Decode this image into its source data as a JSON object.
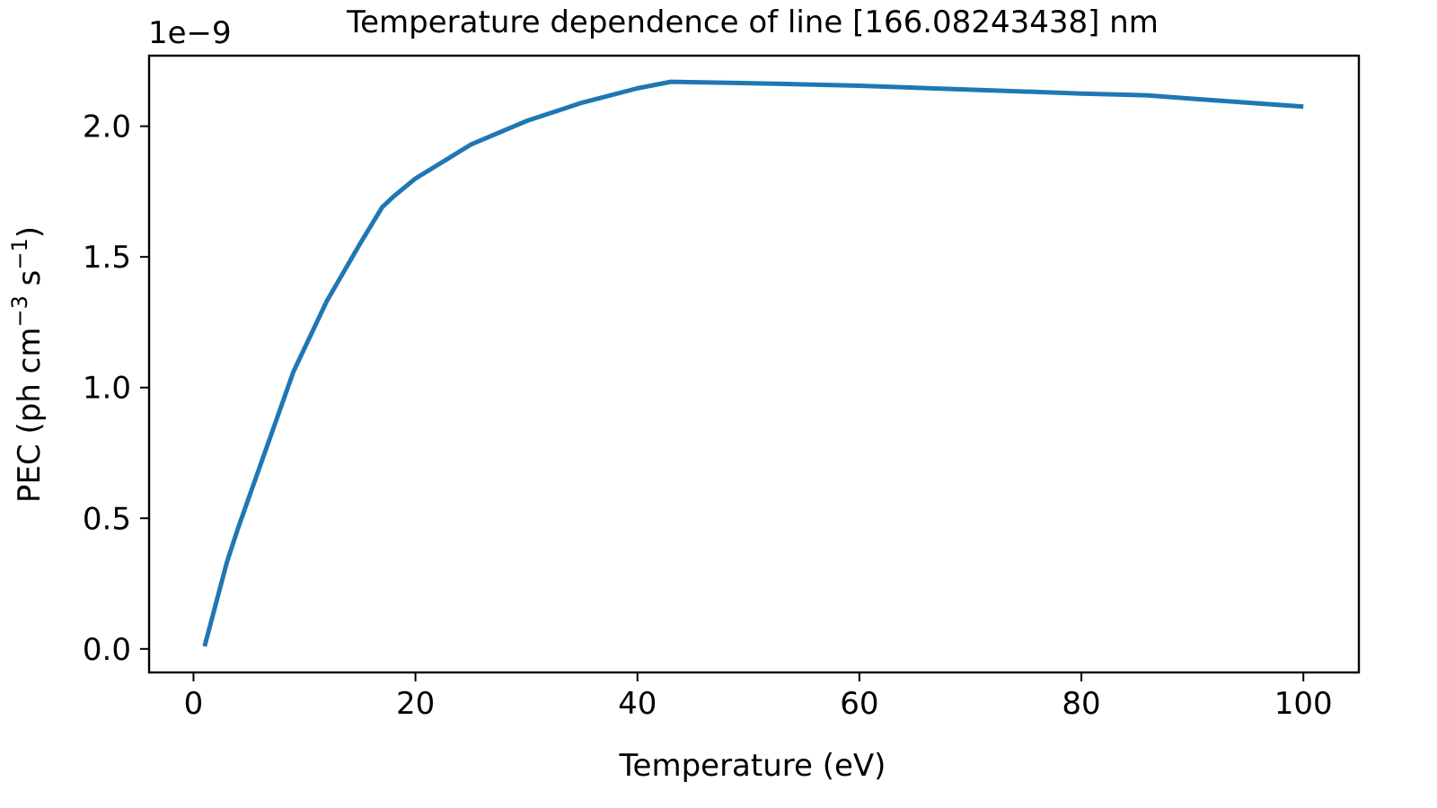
{
  "chart_data": {
    "type": "line",
    "title": "Temperature dependence of line [166.08243438] nm",
    "xlabel": "Temperature (eV)",
    "ylabel_main": "PEC (ph cm",
    "ylabel_sup1": "−3",
    "ylabel_mid": " s",
    "ylabel_sup2": "−1",
    "ylabel_end": ")",
    "y_offset_label": "1e−9",
    "xlim": [
      -4,
      105
    ],
    "ylim": [
      -0.09,
      2.27
    ],
    "xticks": [
      0,
      20,
      40,
      60,
      80,
      100
    ],
    "xtick_labels": [
      "0",
      "20",
      "40",
      "60",
      "80",
      "100"
    ],
    "yticks": [
      0.0,
      0.5,
      1.0,
      1.5,
      2.0
    ],
    "ytick_labels": [
      "0.0",
      "0.5",
      "1.0",
      "1.5",
      "2.0"
    ],
    "grid": false,
    "series": [
      {
        "color": "#1f77b4",
        "x": [
          1,
          3,
          4,
          5,
          7,
          9,
          12,
          15,
          17,
          18,
          20,
          25,
          30,
          35,
          40,
          43,
          50,
          60,
          70,
          80,
          86,
          90,
          95,
          100
        ],
        "y": [
          0.01,
          0.33,
          0.46,
          0.58,
          0.82,
          1.06,
          1.33,
          1.55,
          1.69,
          1.73,
          1.8,
          1.93,
          2.02,
          2.09,
          2.145,
          2.17,
          2.165,
          2.155,
          2.14,
          2.125,
          2.118,
          2.105,
          2.09,
          2.075
        ]
      }
    ]
  }
}
